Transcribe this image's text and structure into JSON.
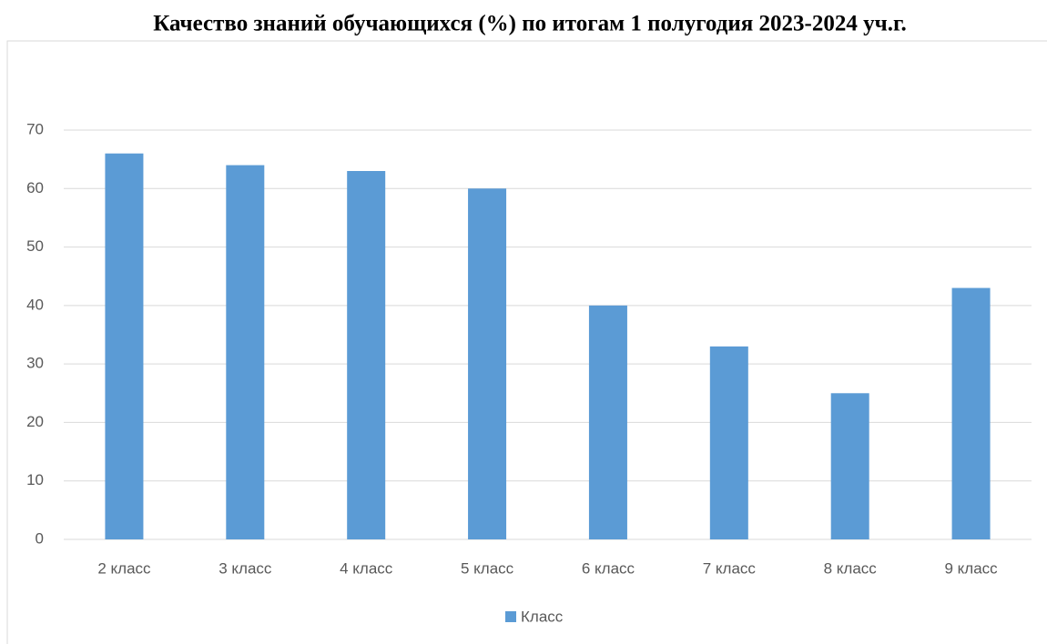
{
  "chart_data": {
    "type": "bar",
    "title": "Качество знаний обучающихся (%) по итогам 1 полугодия 2023-2024 уч.г.",
    "categories": [
      "2 класс",
      "3 класс",
      "4 класс",
      "5 класс",
      "6 класс",
      "7 класс",
      "8 класс",
      "9 класс"
    ],
    "series": [
      {
        "name": "Класс",
        "color": "#5b9bd5",
        "values": [
          66,
          64,
          63,
          60,
          40,
          33,
          25,
          43
        ]
      }
    ],
    "ylim": [
      0,
      70
    ],
    "yticks": [
      0,
      10,
      20,
      30,
      40,
      50,
      60,
      70
    ],
    "grid": true,
    "legend": "bottom"
  }
}
